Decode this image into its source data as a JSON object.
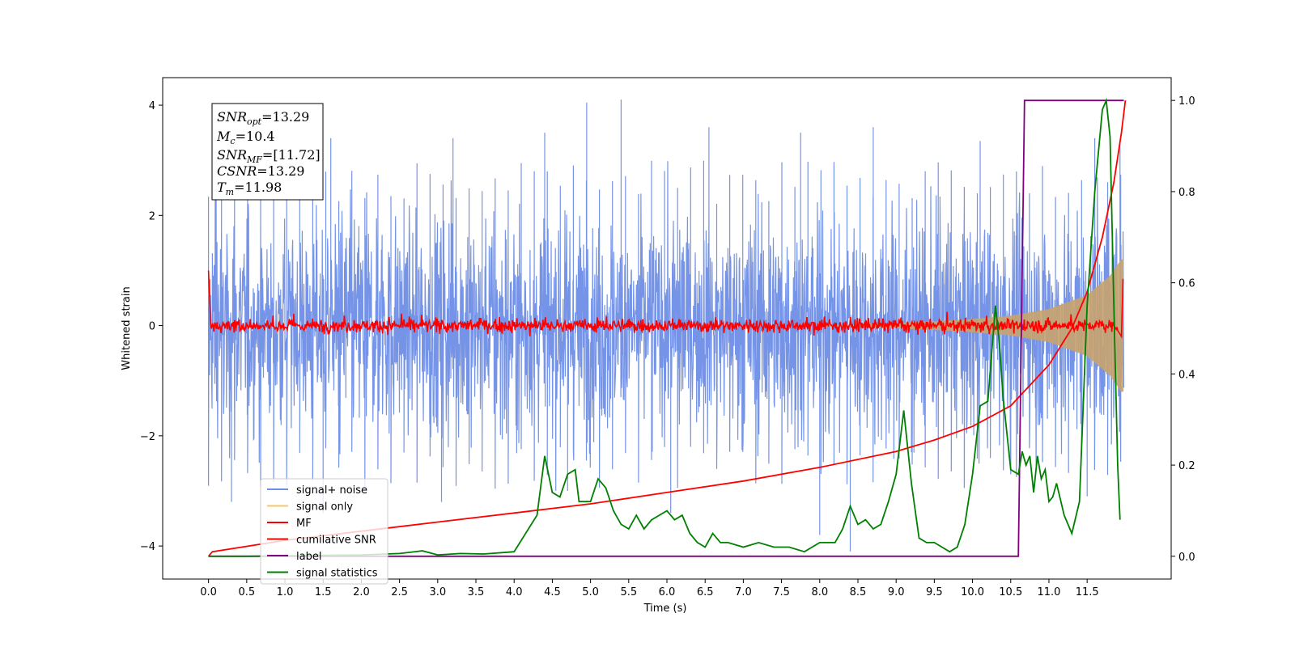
{
  "chart_data": {
    "type": "line",
    "xlabel": "Time (s)",
    "ylabel": "Whitened strain",
    "xlim": [
      -0.6,
      12.6
    ],
    "ylim": [
      -4.6,
      4.5
    ],
    "y2lim": [
      -0.05,
      1.05
    ],
    "x_ticks": [
      "0.0",
      "0.5",
      "1.0",
      "1.5",
      "2.0",
      "2.5",
      "3.0",
      "3.5",
      "4.0",
      "4.5",
      "5.0",
      "5.5",
      "6.0",
      "6.5",
      "7.0",
      "7.5",
      "8.0",
      "8.5",
      "9.0",
      "9.5",
      "10.0",
      "10.5",
      "11.0",
      "11.5"
    ],
    "y_ticks": [
      "−4",
      "−2",
      "0",
      "2",
      "4"
    ],
    "y2_ticks": [
      "0.0",
      "0.2",
      "0.4",
      "0.6",
      "0.8",
      "1.0"
    ],
    "grid": false,
    "legend_position": "lower-left",
    "annotation": {
      "snr_opt": "=13.29",
      "mc": "=10.4",
      "snr_mf": "=[11.72]",
      "csnr": "=13.29",
      "tm": "=11.98"
    },
    "series": [
      {
        "name": "signal+ noise",
        "color": "#6f8ee6",
        "style": "noise band, approx ±2.5 typical amplitude, peaks to ±4.1",
        "peaks": [
          [
            0.1,
            2.9
          ],
          [
            1.6,
            3.4
          ],
          [
            3.2,
            3.4
          ],
          [
            4.4,
            3.5
          ],
          [
            4.95,
            4.05
          ],
          [
            5.4,
            4.1
          ],
          [
            6.55,
            3.6
          ],
          [
            7.75,
            3.5
          ],
          [
            8.7,
            3.6
          ],
          [
            10.1,
            3.35
          ],
          [
            11.6,
            3.4
          ],
          [
            11.93,
            3.3
          ]
        ],
        "troughs": [
          [
            0.3,
            -3.2
          ],
          [
            1.5,
            -3.4
          ],
          [
            3.05,
            -3.2
          ],
          [
            4.7,
            -3.0
          ],
          [
            6.05,
            -3.4
          ],
          [
            8.0,
            -3.8
          ],
          [
            8.4,
            -4.1
          ],
          [
            9.2,
            -2.3
          ],
          [
            10.5,
            -2.7
          ],
          [
            11.5,
            -3.1
          ]
        ]
      },
      {
        "name": "signal only",
        "color": "#f5c86e",
        "style": "chirp envelope growing toward merger",
        "x": [
          9.0,
          9.5,
          10.0,
          10.5,
          11.0,
          11.5,
          11.8,
          11.95
        ],
        "amplitude": [
          0.05,
          0.08,
          0.12,
          0.18,
          0.3,
          0.55,
          0.9,
          1.2
        ]
      },
      {
        "name": "MF",
        "color": "#ff0000",
        "style": "noisy trace around zero, amplitude ~0.15",
        "x": [
          0.0,
          0.02,
          11.9,
          11.97
        ],
        "y": [
          1.0,
          0.0,
          0.0,
          0.85
        ]
      },
      {
        "name": "cumilative SNR",
        "axis": "right",
        "color": "#ff0000",
        "x": [
          0.0,
          0.05,
          1.0,
          2.0,
          3.0,
          4.0,
          5.0,
          6.0,
          7.0,
          8.0,
          9.0,
          9.5,
          10.0,
          10.5,
          11.0,
          11.3,
          11.5,
          11.7,
          11.85,
          11.95,
          12.0
        ],
        "y": [
          0.0,
          0.01,
          0.035,
          0.055,
          0.075,
          0.095,
          0.115,
          0.14,
          0.165,
          0.195,
          0.23,
          0.255,
          0.285,
          0.33,
          0.42,
          0.5,
          0.58,
          0.7,
          0.82,
          0.93,
          1.0
        ]
      },
      {
        "name": "label",
        "axis": "right",
        "color": "#800080",
        "x": [
          0.0,
          10.6,
          10.68,
          11.98
        ],
        "y": [
          0.0,
          0.0,
          1.0,
          1.0
        ]
      },
      {
        "name": "signal statistics",
        "axis": "right",
        "color": "#008000",
        "x": [
          0.0,
          0.5,
          1.0,
          1.5,
          2.0,
          2.5,
          2.8,
          3.0,
          3.3,
          3.6,
          4.0,
          4.3,
          4.4,
          4.5,
          4.6,
          4.7,
          4.8,
          4.85,
          4.9,
          5.0,
          5.1,
          5.2,
          5.3,
          5.4,
          5.5,
          5.6,
          5.7,
          5.8,
          5.9,
          6.0,
          6.1,
          6.2,
          6.3,
          6.4,
          6.5,
          6.6,
          6.7,
          6.8,
          7.0,
          7.2,
          7.4,
          7.6,
          7.8,
          8.0,
          8.2,
          8.3,
          8.4,
          8.5,
          8.6,
          8.7,
          8.8,
          8.9,
          9.0,
          9.1,
          9.2,
          9.3,
          9.4,
          9.5,
          9.6,
          9.7,
          9.8,
          9.9,
          10.0,
          10.1,
          10.2,
          10.3,
          10.35,
          10.4,
          10.5,
          10.6,
          10.65,
          10.7,
          10.75,
          10.8,
          10.85,
          10.9,
          10.95,
          11.0,
          11.05,
          11.1,
          11.2,
          11.3,
          11.4,
          11.5,
          11.6,
          11.7,
          11.75,
          11.8,
          11.85,
          11.9,
          11.93
        ],
        "y": [
          0.0,
          0.0,
          0.001,
          0.002,
          0.003,
          0.006,
          0.012,
          0.003,
          0.006,
          0.005,
          0.01,
          0.09,
          0.22,
          0.14,
          0.13,
          0.18,
          0.19,
          0.12,
          0.12,
          0.12,
          0.17,
          0.15,
          0.1,
          0.07,
          0.06,
          0.09,
          0.06,
          0.08,
          0.09,
          0.1,
          0.08,
          0.09,
          0.05,
          0.03,
          0.02,
          0.05,
          0.03,
          0.03,
          0.02,
          0.03,
          0.02,
          0.02,
          0.01,
          0.03,
          0.03,
          0.06,
          0.11,
          0.07,
          0.08,
          0.06,
          0.07,
          0.12,
          0.18,
          0.32,
          0.16,
          0.04,
          0.03,
          0.03,
          0.02,
          0.01,
          0.02,
          0.07,
          0.18,
          0.33,
          0.34,
          0.55,
          0.47,
          0.35,
          0.19,
          0.18,
          0.23,
          0.2,
          0.22,
          0.14,
          0.22,
          0.17,
          0.19,
          0.12,
          0.13,
          0.16,
          0.09,
          0.05,
          0.12,
          0.55,
          0.8,
          0.98,
          1.0,
          0.92,
          0.55,
          0.2,
          0.08
        ]
      }
    ]
  }
}
